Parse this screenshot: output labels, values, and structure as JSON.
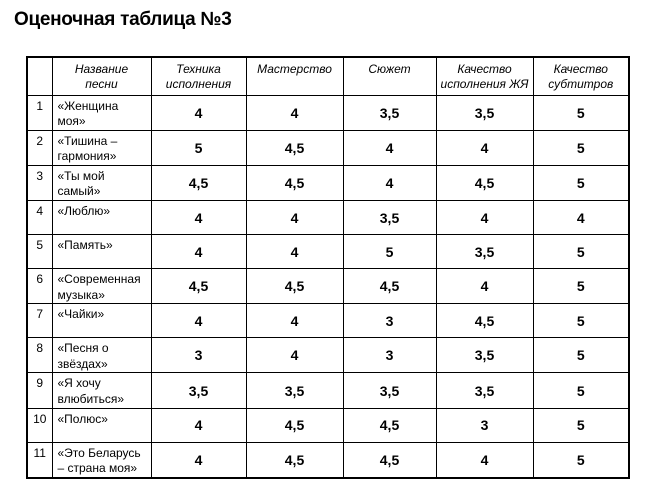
{
  "title": "Оценочная таблица №3",
  "table": {
    "headers": [
      "",
      "Название\nпесни",
      "Техника\nисполнения",
      "Мастерство",
      "Сюжет",
      "Качество\nисполнения ЖЯ",
      "Качество\nсубтитров"
    ],
    "rows": [
      {
        "num": "1",
        "song": "«Женщина\nмоя»",
        "scores": [
          "4",
          "4",
          "3,5",
          "3,5",
          "5"
        ]
      },
      {
        "num": "2",
        "song": "«Тишина –\nгармония»",
        "scores": [
          "5",
          "4,5",
          "4",
          "4",
          "5"
        ]
      },
      {
        "num": "3",
        "song": "«Ты мой\nсамый»",
        "scores": [
          "4,5",
          "4,5",
          "4",
          "4,5",
          "5"
        ]
      },
      {
        "num": "4",
        "song": "«Люблю»",
        "scores": [
          "4",
          "4",
          "3,5",
          "4",
          "4"
        ]
      },
      {
        "num": "5",
        "song": "«Память»",
        "scores": [
          "4",
          "4",
          "5",
          "3,5",
          "5"
        ]
      },
      {
        "num": "6",
        "song": "«Современная\nмузыка»",
        "scores": [
          "4,5",
          "4,5",
          "4,5",
          "4",
          "5"
        ]
      },
      {
        "num": "7",
        "song": "«Чайки»",
        "scores": [
          "4",
          "4",
          "3",
          "4,5",
          "5"
        ]
      },
      {
        "num": "8",
        "song": "«Песня о\nзвёздах»",
        "scores": [
          "3",
          "4",
          "3",
          "3,5",
          "5"
        ]
      },
      {
        "num": "9",
        "song": "«Я хочу\nвлюбиться»",
        "scores": [
          "3,5",
          "3,5",
          "3,5",
          "3,5",
          "5"
        ]
      },
      {
        "num": "10",
        "song": "«Полюс»",
        "scores": [
          "4",
          "4,5",
          "4,5",
          "3",
          "5"
        ]
      },
      {
        "num": "11",
        "song": "«Это Беларусь\n– страна моя»",
        "scores": [
          "4",
          "4,5",
          "4,5",
          "4",
          "5"
        ]
      }
    ]
  }
}
